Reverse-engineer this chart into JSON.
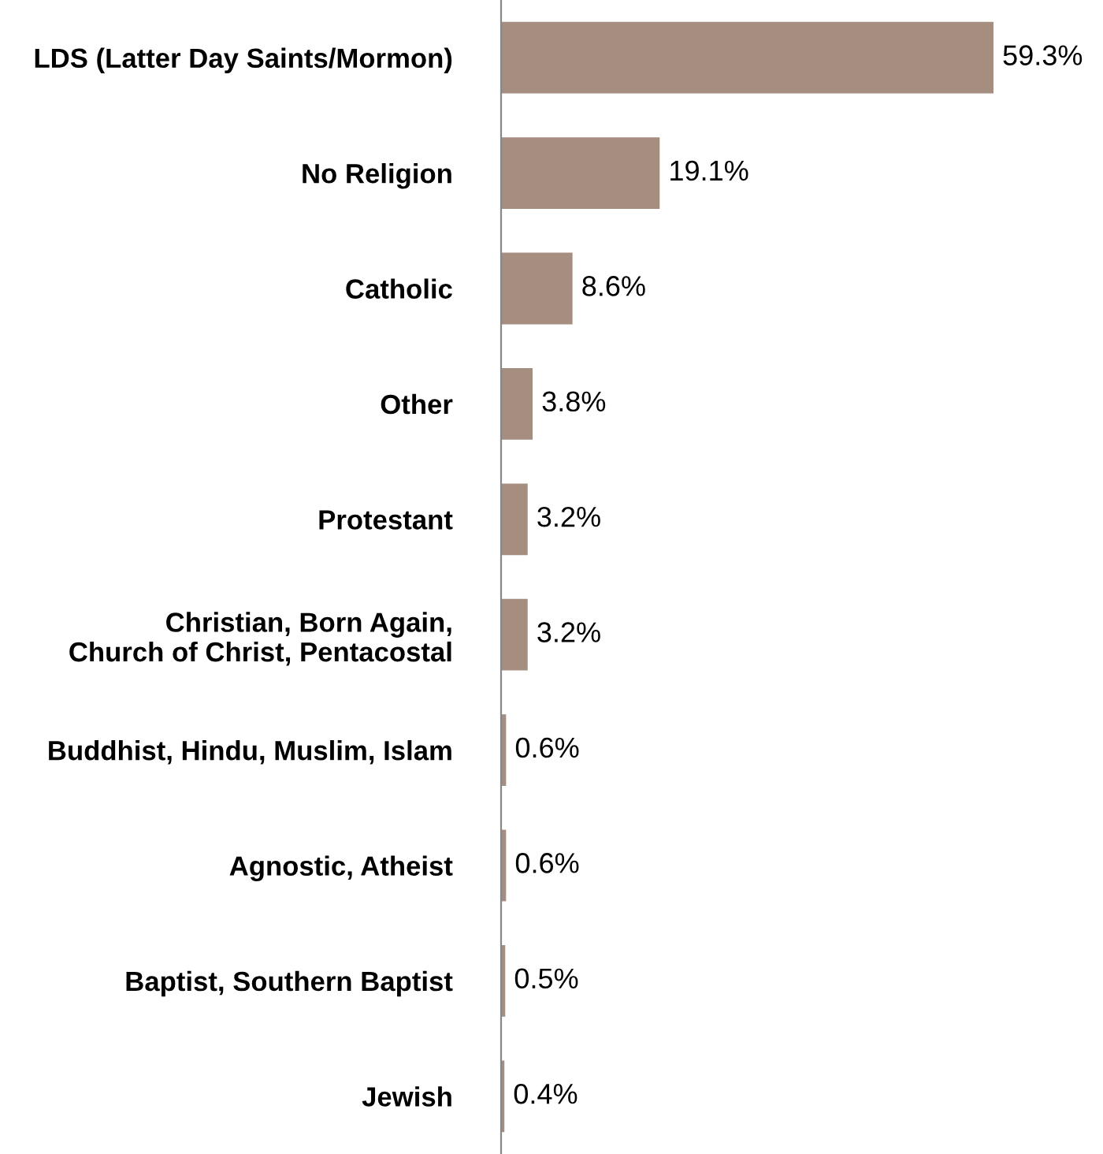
{
  "chart_data": {
    "type": "bar",
    "orientation": "horizontal",
    "categories": [
      "LDS (Latter Day Saints/Mormon)",
      "No Religion",
      "Catholic",
      "Other",
      "Protestant",
      "Christian, Born Again,\nChurch of Christ, Pentacostal",
      "Buddhist, Hindu, Muslim, Islam",
      "Agnostic, Atheist",
      "Baptist, Southern Baptist",
      "Jewish"
    ],
    "values": [
      59.3,
      19.1,
      8.6,
      3.8,
      3.2,
      3.2,
      0.6,
      0.6,
      0.5,
      0.4
    ],
    "value_labels": [
      "59.3%",
      "19.1%",
      "8.6%",
      "3.8%",
      "3.2%",
      "3.2%",
      "0.6%",
      "0.6%",
      "0.5%",
      "0.4%"
    ],
    "color": "#a58d7f",
    "grid": false,
    "legend": false
  }
}
